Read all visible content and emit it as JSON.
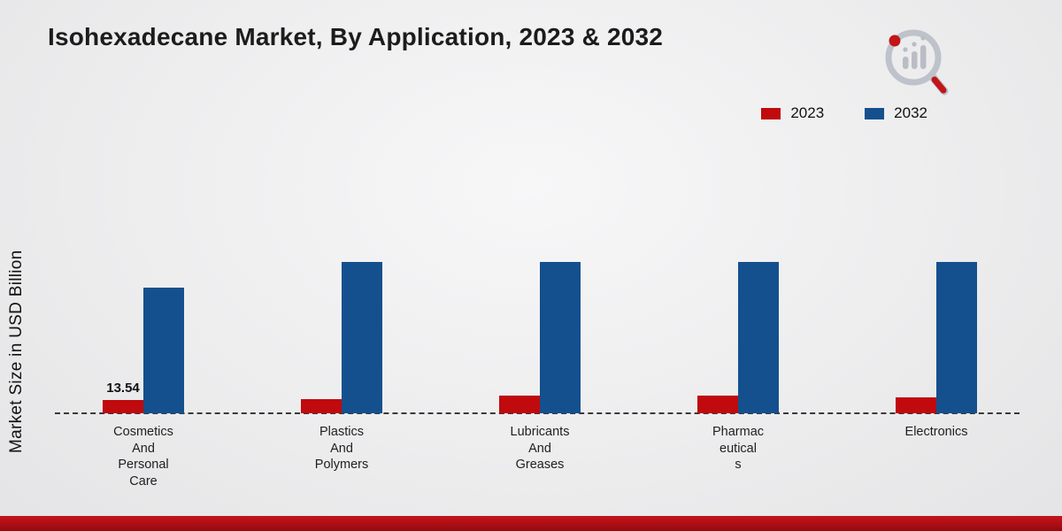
{
  "title": "Isohexadecane Market, By Application, 2023 & 2032",
  "accent_colors": {
    "red": "#c00a0d",
    "blue": "#14508e",
    "footer_red": "#b01116"
  },
  "logo_icon": "magnifier-bar-chart-icon",
  "chart_data": {
    "type": "bar",
    "title": "Isohexadecane Market, By Application, 2023 & 2032",
    "xlabel": "",
    "ylabel": "Market Size in USD Billion",
    "legend_position": "top-right",
    "grid": false,
    "baseline_style": "dashed",
    "categories": [
      "Cosmetics And Personal Care",
      "Plastics And Polymers",
      "Lubricants And Greases",
      "Pharmaceuticals",
      "Electronics"
    ],
    "category_display_lines": [
      [
        "Cosmetics",
        "And",
        "Personal",
        "Care"
      ],
      [
        "Plastics",
        "And",
        "Polymers"
      ],
      [
        "Lubricants",
        "And",
        "Greases"
      ],
      [
        "Pharmac",
        "eutical",
        "s"
      ],
      [
        "Electronics"
      ]
    ],
    "series": [
      {
        "name": "2023",
        "color": "#c00a0d",
        "values": [
          13.54,
          14.4,
          18.1,
          18.1,
          16.3
        ]
      },
      {
        "name": "2032",
        "color": "#14508e",
        "values": [
          128.2,
          154.4,
          154.4,
          154.4,
          154.4
        ]
      }
    ],
    "data_labels": [
      "13.54",
      "",
      "",
      "",
      ""
    ],
    "ylim": [
      0,
      160
    ]
  }
}
